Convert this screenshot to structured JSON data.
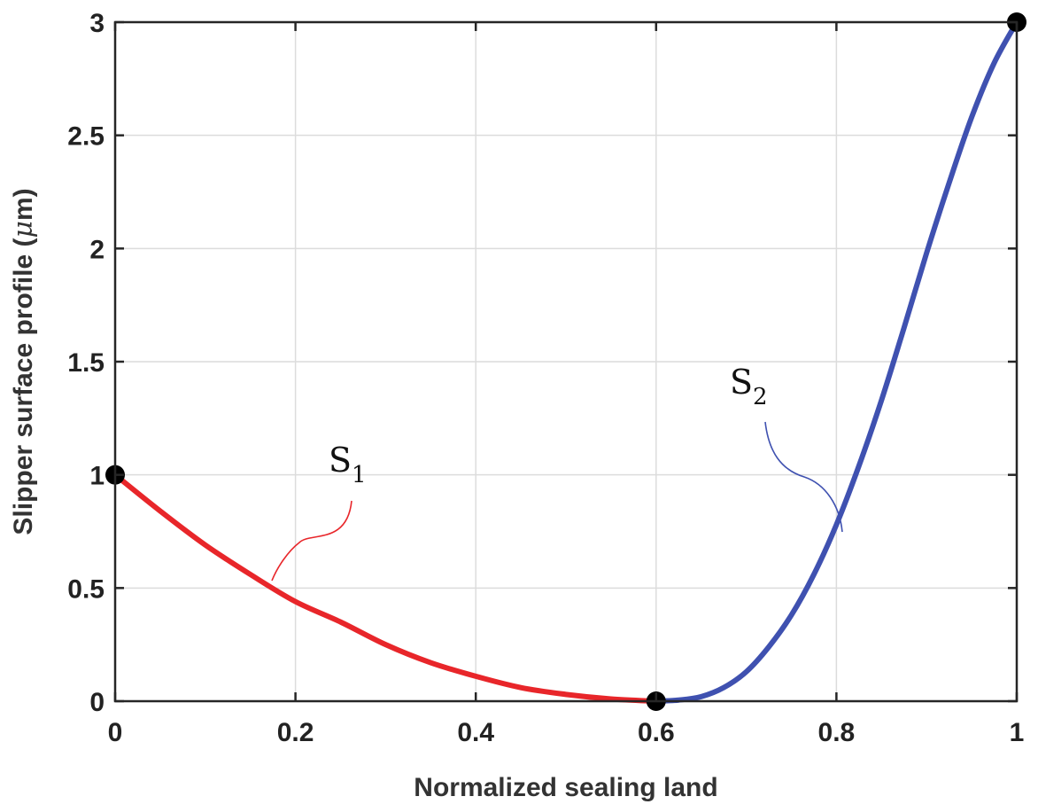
{
  "chart_data": {
    "type": "line",
    "xlabel": "Normalized sealing land",
    "ylabel_main": "Slipper surface profile (",
    "ylabel_mu": "μ",
    "ylabel_unit": "m)",
    "xlim": [
      0,
      1
    ],
    "ylim": [
      0,
      3
    ],
    "grid": true,
    "xticks": [
      0,
      0.2,
      0.4,
      0.6,
      0.8,
      1
    ],
    "xtick_labels": [
      "0",
      "0.2",
      "0.4",
      "0.6",
      "0.8",
      "1"
    ],
    "yticks": [
      0,
      0.5,
      1,
      1.5,
      2,
      2.5,
      3
    ],
    "ytick_labels": [
      "0",
      "0.5",
      "1",
      "1.5",
      "2",
      "2.5",
      "3"
    ],
    "series": [
      {
        "name": "S1",
        "color": "#e8262a",
        "x": [
          0,
          0.05,
          0.1,
          0.15,
          0.2,
          0.25,
          0.3,
          0.35,
          0.4,
          0.45,
          0.5,
          0.55,
          0.6
        ],
        "y": [
          1,
          0.84,
          0.69,
          0.56,
          0.44,
          0.35,
          0.25,
          0.17,
          0.11,
          0.06,
          0.03,
          0.01,
          0
        ]
      },
      {
        "name": "S2",
        "color": "#3f51b0",
        "x": [
          0.6,
          0.625,
          0.65,
          0.675,
          0.7,
          0.725,
          0.75,
          0.775,
          0.8,
          0.825,
          0.85,
          0.875,
          0.9,
          0.925,
          0.95,
          0.975,
          1
        ],
        "y": [
          0,
          0.005,
          0.02,
          0.06,
          0.13,
          0.24,
          0.38,
          0.56,
          0.78,
          1.04,
          1.33,
          1.65,
          1.98,
          2.29,
          2.58,
          2.82,
          3
        ]
      }
    ],
    "markers": [
      {
        "x": 0,
        "y": 1
      },
      {
        "x": 0.6,
        "y": 0
      },
      {
        "x": 1,
        "y": 3
      }
    ],
    "annotations": [
      {
        "label": "S",
        "subscript": "1",
        "series": "S1",
        "color": "#e8262a"
      },
      {
        "label": "S",
        "subscript": "2",
        "series": "S2",
        "color": "#3f51b0"
      }
    ]
  }
}
